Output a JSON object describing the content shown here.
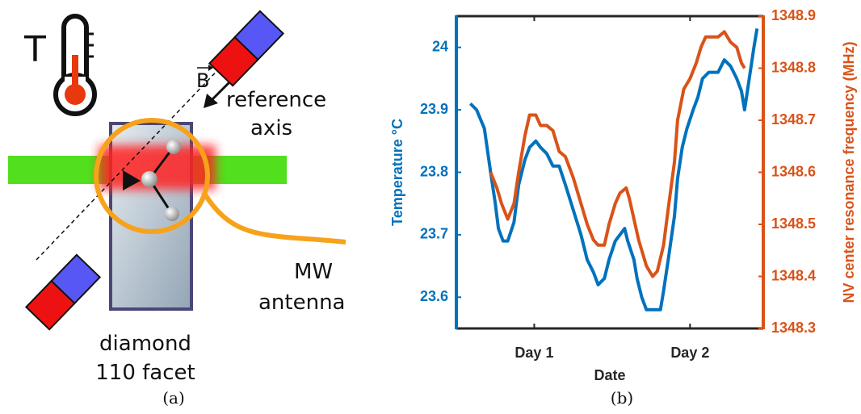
{
  "diagram": {
    "temperature_symbol": "T",
    "field_symbol": "B",
    "reference_label": [
      "reference",
      "axis"
    ],
    "antenna_label": [
      "MW",
      "antenna"
    ],
    "sample_label": [
      "diamond",
      "110 facet"
    ]
  },
  "captions": [
    "(a)",
    "(b)"
  ],
  "chart_data": {
    "type": "line",
    "xlabel": "Date",
    "ylabel": "Temperature °C",
    "y2label": "NV center resonance frequency (MHz)",
    "xlim": [
      0.5,
      2.47
    ],
    "xticks": [
      {
        "value": 1,
        "label": "Day 1"
      },
      {
        "value": 2,
        "label": "Day 2"
      }
    ],
    "ylim": [
      23.55,
      24.05
    ],
    "yticks": [
      23.6,
      23.7,
      23.8,
      23.9,
      24
    ],
    "y2lim": [
      1348.3,
      1348.9
    ],
    "y2ticks": [
      1348.3,
      1348.4,
      1348.5,
      1348.6,
      1348.7,
      1348.8,
      1348.9
    ],
    "y_color": "#0072bd",
    "y2_color": "#d95319",
    "series": [
      {
        "color": "#0072bd",
        "axis": "y",
        "x": [
          0.59,
          0.63,
          0.68,
          0.72,
          0.75,
          0.77,
          0.8,
          0.83,
          0.87,
          0.9,
          0.94,
          0.97,
          1.01,
          1.04,
          1.08,
          1.12,
          1.16,
          1.2,
          1.25,
          1.3,
          1.34,
          1.38,
          1.41,
          1.45,
          1.48,
          1.52,
          1.55,
          1.58,
          1.6,
          1.64,
          1.66,
          1.69,
          1.72,
          1.77,
          1.81,
          1.83,
          1.86,
          1.9,
          1.92,
          1.95,
          1.98,
          2.02,
          2.05,
          2.08,
          2.12,
          2.18,
          2.22,
          2.26,
          2.3,
          2.33,
          2.35,
          2.38,
          2.41,
          2.43
        ],
        "values": [
          23.91,
          23.9,
          23.87,
          23.8,
          23.75,
          23.71,
          23.69,
          23.69,
          23.72,
          23.78,
          23.82,
          23.84,
          23.85,
          23.84,
          23.83,
          23.81,
          23.81,
          23.78,
          23.74,
          23.7,
          23.66,
          23.64,
          23.62,
          23.63,
          23.66,
          23.69,
          23.7,
          23.71,
          23.69,
          23.66,
          23.63,
          23.6,
          23.58,
          23.58,
          23.58,
          23.61,
          23.66,
          23.73,
          23.79,
          23.84,
          23.87,
          23.9,
          23.92,
          23.95,
          23.96,
          23.96,
          23.98,
          23.97,
          23.95,
          23.93,
          23.9,
          23.95,
          24.0,
          24.03
        ]
      },
      {
        "color": "#d95319",
        "axis": "y2",
        "x": [
          0.72,
          0.76,
          0.79,
          0.83,
          0.87,
          0.9,
          0.94,
          0.97,
          1.01,
          1.04,
          1.08,
          1.12,
          1.16,
          1.2,
          1.25,
          1.3,
          1.34,
          1.38,
          1.41,
          1.45,
          1.48,
          1.52,
          1.55,
          1.59,
          1.61,
          1.64,
          1.67,
          1.72,
          1.76,
          1.79,
          1.83,
          1.86,
          1.9,
          1.92,
          1.96,
          2.0,
          2.04,
          2.07,
          2.1,
          2.14,
          2.18,
          2.22,
          2.26,
          2.3,
          2.33,
          2.35
        ],
        "values": [
          1348.6,
          1348.57,
          1348.54,
          1348.51,
          1348.54,
          1348.6,
          1348.67,
          1348.71,
          1348.71,
          1348.69,
          1348.69,
          1348.68,
          1348.64,
          1348.63,
          1348.59,
          1348.54,
          1348.5,
          1348.47,
          1348.46,
          1348.46,
          1348.5,
          1348.54,
          1348.56,
          1348.57,
          1348.55,
          1348.51,
          1348.47,
          1348.42,
          1348.4,
          1348.41,
          1348.46,
          1348.53,
          1348.62,
          1348.7,
          1348.76,
          1348.78,
          1348.81,
          1348.84,
          1348.86,
          1348.86,
          1348.86,
          1348.87,
          1348.85,
          1348.84,
          1348.81,
          1348.8
        ]
      }
    ]
  }
}
